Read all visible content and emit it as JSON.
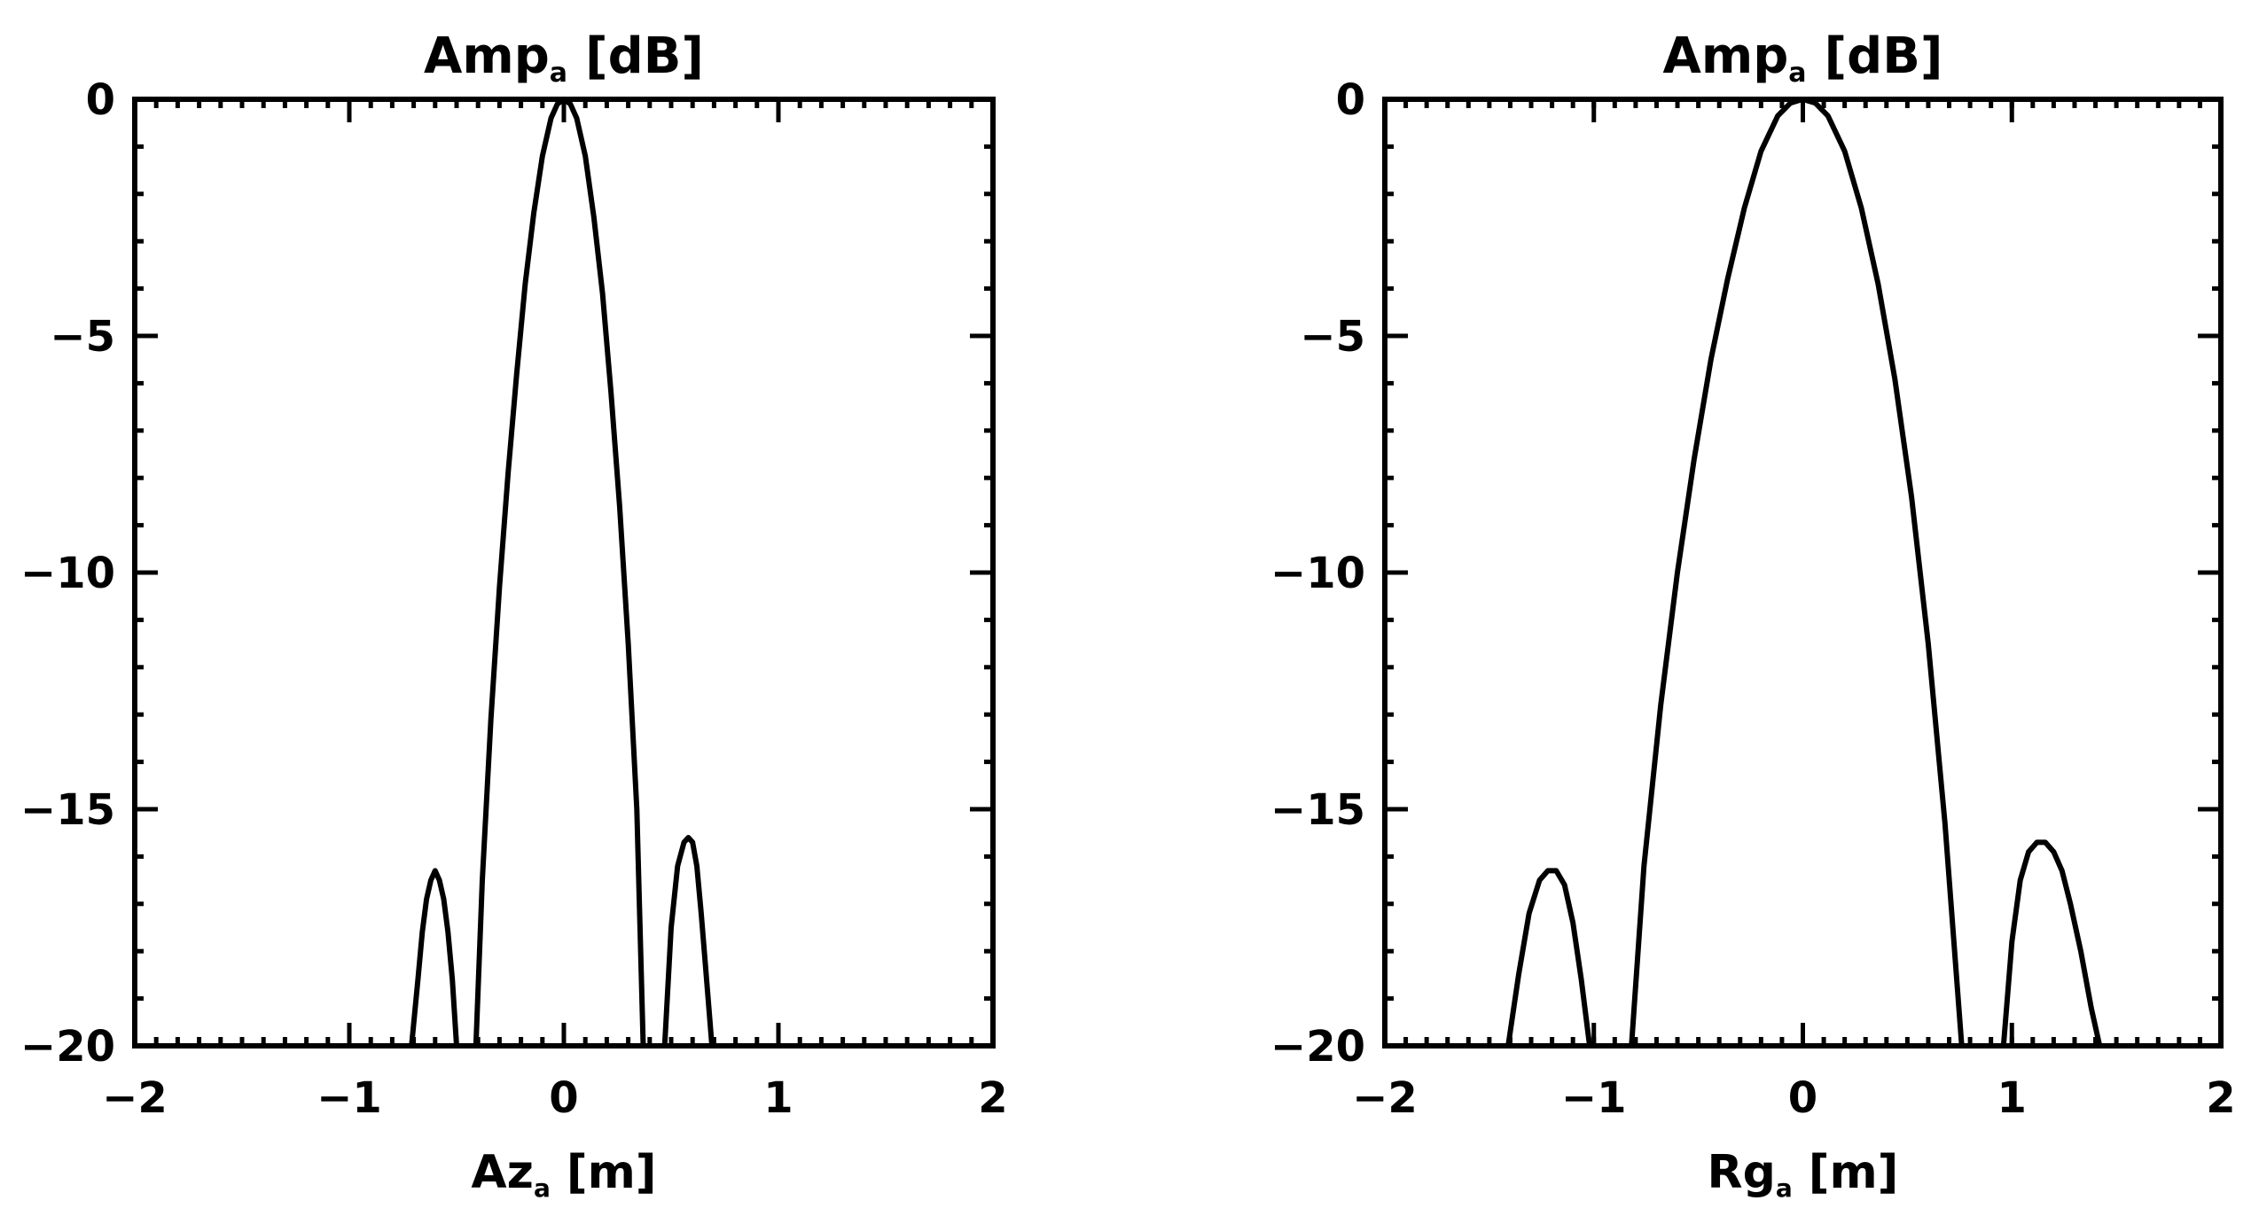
{
  "chart_data": [
    {
      "type": "line",
      "title": "Ampₐ [dB]",
      "title_main": "Amp",
      "title_sub": "a",
      "title_unit": "[dB]",
      "xlabel": "Az",
      "xlabel_sub": "a",
      "xlabel_unit": "[m]",
      "ylabel": "",
      "xlim": [
        -2,
        2
      ],
      "ylim": [
        -20,
        0
      ],
      "xticks": [
        "−2",
        "−1",
        "0",
        "1",
        "2"
      ],
      "xtick_values": [
        -2,
        -1,
        0,
        1,
        2
      ],
      "yticks": [
        "0",
        "−5",
        "−10",
        "−15",
        "−20"
      ],
      "ytick_values": [
        0,
        -5,
        -10,
        -15,
        -20
      ],
      "grid": false,
      "series": [
        {
          "lobes": [
            {
              "x": [
                -0.71,
                -0.68,
                -0.66,
                -0.64,
                -0.62,
                -0.6,
                -0.58,
                -0.56,
                -0.54,
                -0.52,
                -0.5
              ],
              "y": [
                -20,
                -18.6,
                -17.6,
                -16.9,
                -16.5,
                -16.3,
                -16.5,
                -16.9,
                -17.6,
                -18.6,
                -20
              ]
            },
            {
              "x": [
                -0.41,
                -0.38,
                -0.34,
                -0.3,
                -0.26,
                -0.22,
                -0.18,
                -0.14,
                -0.1,
                -0.06,
                -0.03,
                0.0,
                0.03,
                0.06,
                0.1,
                0.14,
                0.18,
                0.22,
                0.26,
                0.3,
                0.34,
                0.37
              ],
              "y": [
                -20,
                -16.5,
                -13.1,
                -10.3,
                -7.9,
                -5.8,
                -3.9,
                -2.4,
                -1.2,
                -0.4,
                -0.1,
                0.0,
                -0.1,
                -0.4,
                -1.2,
                -2.5,
                -4.1,
                -6.2,
                -8.6,
                -11.5,
                -15.0,
                -20
              ]
            },
            {
              "x": [
                0.47,
                0.5,
                0.53,
                0.56,
                0.58,
                0.6,
                0.62,
                0.64,
                0.66,
                0.69
              ],
              "y": [
                -20,
                -17.5,
                -16.2,
                -15.7,
                -15.6,
                -15.7,
                -16.2,
                -17.2,
                -18.3,
                -20
              ]
            }
          ]
        }
      ]
    },
    {
      "type": "line",
      "title": "Ampₐ [dB]",
      "title_main": "Amp",
      "title_sub": "a",
      "title_unit": "[dB]",
      "xlabel": "Rg",
      "xlabel_sub": "a",
      "xlabel_unit": "[m]",
      "ylabel": "",
      "xlim": [
        -2,
        2
      ],
      "ylim": [
        -20,
        0
      ],
      "xticks": [
        "−2",
        "−1",
        "0",
        "1",
        "2"
      ],
      "xtick_values": [
        -2,
        -1,
        0,
        1,
        2
      ],
      "yticks": [
        "0",
        "−5",
        "−10",
        "−15",
        "−20"
      ],
      "ytick_values": [
        0,
        -5,
        -10,
        -15,
        -20
      ],
      "grid": false,
      "series": [
        {
          "lobes": [
            {
              "x": [
                -1.41,
                -1.36,
                -1.31,
                -1.26,
                -1.22,
                -1.18,
                -1.14,
                -1.1,
                -1.06,
                -1.02
              ],
              "y": [
                -20,
                -18.5,
                -17.2,
                -16.5,
                -16.3,
                -16.3,
                -16.6,
                -17.4,
                -18.6,
                -20
              ]
            },
            {
              "x": [
                -0.82,
                -0.76,
                -0.68,
                -0.6,
                -0.52,
                -0.44,
                -0.36,
                -0.28,
                -0.2,
                -0.12,
                -0.06,
                0.0,
                0.06,
                0.12,
                0.2,
                0.28,
                0.36,
                0.44,
                0.52,
                0.6,
                0.68,
                0.76
              ],
              "y": [
                -20,
                -16.2,
                -12.8,
                -10.0,
                -7.6,
                -5.5,
                -3.8,
                -2.3,
                -1.1,
                -0.35,
                -0.08,
                0.0,
                -0.08,
                -0.35,
                -1.1,
                -2.3,
                -3.9,
                -5.9,
                -8.4,
                -11.5,
                -15.3,
                -20
              ]
            },
            {
              "x": [
                0.96,
                1.0,
                1.04,
                1.08,
                1.12,
                1.16,
                1.2,
                1.24,
                1.28,
                1.33,
                1.38,
                1.42
              ],
              "y": [
                -20,
                -17.8,
                -16.5,
                -15.9,
                -15.7,
                -15.7,
                -15.9,
                -16.3,
                -17.0,
                -18.0,
                -19.2,
                -20
              ]
            }
          ]
        }
      ]
    }
  ]
}
